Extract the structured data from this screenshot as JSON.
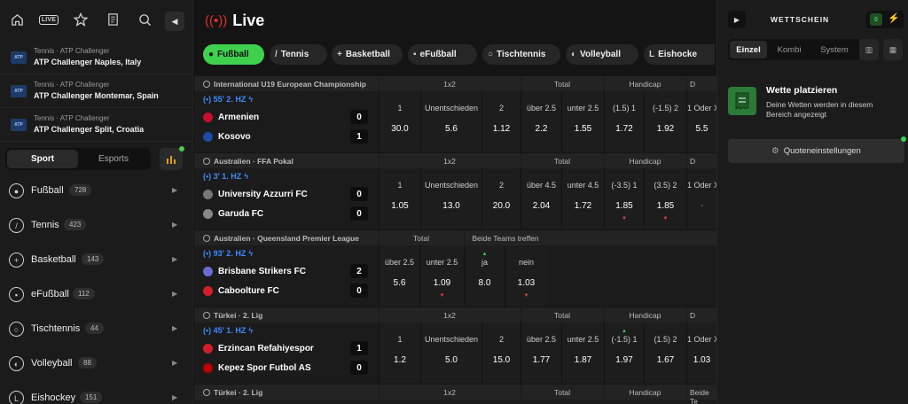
{
  "sidebar": {
    "top_icons": {
      "live_label": "LIVE"
    },
    "tournaments": [
      {
        "sub": "Tennis · ATP Challenger",
        "name": "ATP Challenger Naples, Italy"
      },
      {
        "sub": "Tennis · ATP Challenger",
        "name": "ATP Challenger Montemar, Spain"
      },
      {
        "sub": "Tennis · ATP Challenger",
        "name": "ATP Challenger Split, Croatia"
      }
    ],
    "toggle": {
      "sport": "Sport",
      "esports": "Esports"
    },
    "sports": [
      {
        "name": "Fußball",
        "count": "728",
        "icon": "soccer-ball-icon"
      },
      {
        "name": "Tennis",
        "count": "423",
        "icon": "tennis-racket-icon"
      },
      {
        "name": "Basketball",
        "count": "143",
        "icon": "basketball-icon"
      },
      {
        "name": "eFußball",
        "count": "112",
        "icon": "gamepad-icon"
      },
      {
        "name": "Tischtennis",
        "count": "44",
        "icon": "table-tennis-icon"
      },
      {
        "name": "Volleyball",
        "count": "88",
        "icon": "volleyball-icon"
      },
      {
        "name": "Eishockey",
        "count": "151",
        "icon": "hockey-stick-icon"
      }
    ]
  },
  "main": {
    "title": "Live",
    "filters": [
      "Fußball",
      "Tennis",
      "Basketball",
      "eFußball",
      "Tischtennis",
      "Volleyball",
      "Eishocke"
    ],
    "blocks": [
      {
        "league": "International  U19 European Championship",
        "headers": [
          "1x2",
          "Total",
          "Handicap",
          "D"
        ],
        "clock": "55' 2. HZ",
        "home": "Armenien",
        "away": "Kosovo",
        "home_score": "0",
        "away_score": "1",
        "labels": [
          "1",
          "Unentschieden",
          "2",
          "über 2.5",
          "unter 2.5",
          "(1.5) 1",
          "(-1.5) 2",
          "1 Oder X"
        ],
        "values": [
          "30.0",
          "5.6",
          "1.12",
          "2.2",
          "1.55",
          "1.72",
          "1.92",
          "5.5"
        ]
      },
      {
        "league": "Australien  ·  FFA Pokal",
        "headers": [
          "1x2",
          "Total",
          "Handicap",
          "D"
        ],
        "clock": "3' 1. HZ",
        "home": "University Azzurri FC",
        "away": "Garuda FC",
        "home_score": "0",
        "away_score": "0",
        "labels": [
          "1",
          "Unentschieden",
          "2",
          "über 4.5",
          "unter 4.5",
          "(-3.5) 1",
          "(3.5) 2",
          "1 Oder X"
        ],
        "values": [
          "1.05",
          "13.0",
          "20.0",
          "2.04",
          "1.72",
          "1.85",
          "1.85",
          "-"
        ]
      },
      {
        "league": "Australien  ·  Queensland Premier League",
        "headers": [
          "Total",
          "Beide Teams treffen"
        ],
        "clock": "93' 2. HZ",
        "home": "Brisbane Strikers FC",
        "away": "Caboolture FC",
        "home_score": "2",
        "away_score": "0",
        "labels": [
          "über 2.5",
          "unter 2.5",
          "ja",
          "nein"
        ],
        "values": [
          "5.6",
          "1.09",
          "8.0",
          "1.03"
        ]
      },
      {
        "league": "Türkei  ·  2. Lig",
        "headers": [
          "1x2",
          "Total",
          "Handicap",
          "D"
        ],
        "clock": "45' 1. HZ",
        "home": "Erzincan Refahiyespor",
        "away": "Kepez Spor Futbol AS",
        "home_score": "1",
        "away_score": "0",
        "labels": [
          "1",
          "Unentschieden",
          "2",
          "über 2.5",
          "unter 2.5",
          "(-1.5) 1",
          "(1.5) 2",
          "1 Oder X"
        ],
        "values": [
          "1.2",
          "5.0",
          "15.0",
          "1.77",
          "1.87",
          "1.97",
          "1.67",
          "1.03"
        ]
      },
      {
        "league": "Türkei  ·  2. Lig",
        "headers": [
          "1x2",
          "Total",
          "Handicap",
          "Beide Te"
        ]
      }
    ]
  },
  "slip": {
    "title": "WETTSCHEIN",
    "tabs": [
      "Einzel",
      "Kombi",
      "System"
    ],
    "info_title": "Wette platzieren",
    "info_text": "Deine Wetten werden in diesem Bereich angezeigt",
    "settings": "Quoteneinstellungen",
    "count_badge": "0"
  },
  "colors": {
    "accent": "#3fd14e",
    "live": "#e63030",
    "clock": "#3d8bfd"
  }
}
